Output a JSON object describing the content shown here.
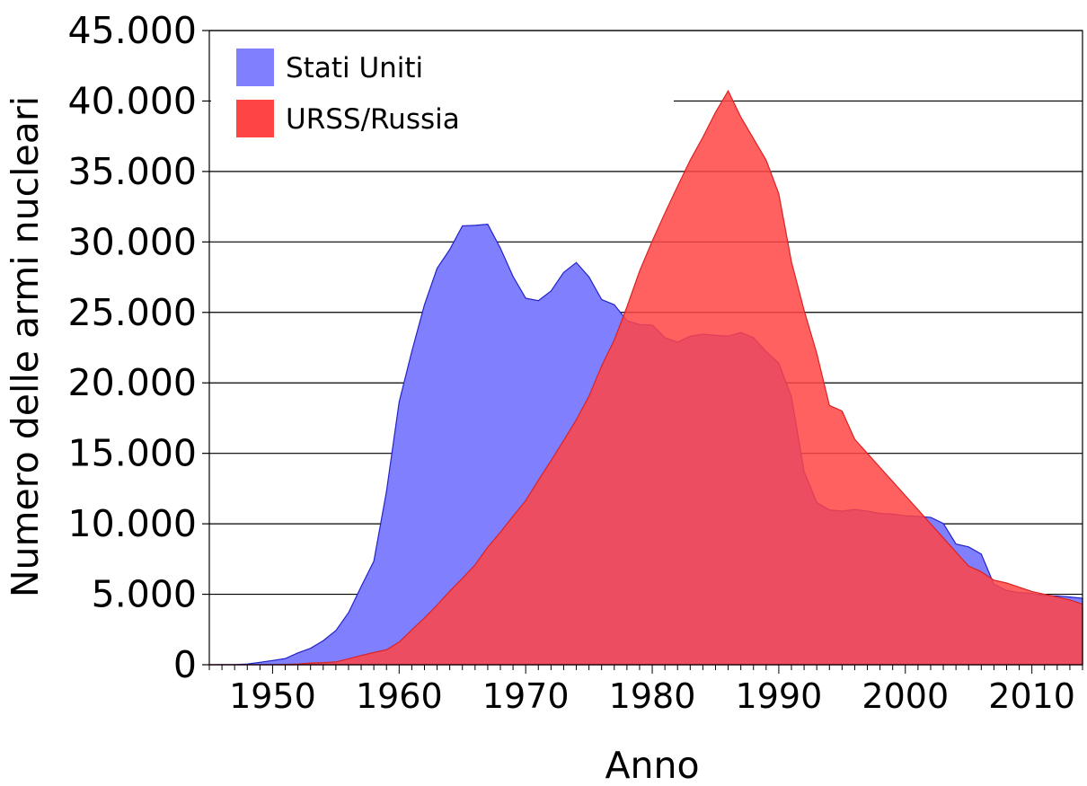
{
  "chart_data": {
    "type": "area",
    "title": "",
    "xlabel": "Anno",
    "ylabel": "Numero delle armi nucleari",
    "xlim": [
      1945,
      2014
    ],
    "ylim": [
      0,
      45000
    ],
    "grid": true,
    "legend_position": "top-left",
    "x_ticks": [
      1950,
      1960,
      1970,
      1980,
      1990,
      2000,
      2010
    ],
    "x_tick_labels": [
      "1950",
      "1960",
      "1970",
      "1980",
      "1990",
      "2000",
      "2010"
    ],
    "y_ticks": [
      0,
      5000,
      10000,
      15000,
      20000,
      25000,
      30000,
      35000,
      40000,
      45000
    ],
    "y_tick_labels": [
      "0",
      "5.000",
      "10.000",
      "15.000",
      "20.000",
      "25.000",
      "30.000",
      "35.000",
      "40.000",
      "45.000"
    ],
    "series": [
      {
        "name": "Stati Uniti",
        "fill": "#8080ff",
        "stroke": "#2222cc",
        "x": [
          1945,
          1946,
          1947,
          1948,
          1949,
          1950,
          1951,
          1952,
          1953,
          1954,
          1955,
          1956,
          1957,
          1958,
          1959,
          1960,
          1961,
          1962,
          1963,
          1964,
          1965,
          1966,
          1967,
          1968,
          1969,
          1970,
          1971,
          1972,
          1973,
          1974,
          1975,
          1976,
          1977,
          1978,
          1979,
          1980,
          1981,
          1982,
          1983,
          1984,
          1985,
          1986,
          1987,
          1988,
          1989,
          1990,
          1991,
          1992,
          1993,
          1994,
          1995,
          1996,
          1997,
          1998,
          1999,
          2000,
          2001,
          2002,
          2003,
          2004,
          2005,
          2006,
          2007,
          2008,
          2009,
          2010,
          2011,
          2012,
          2013,
          2014
        ],
        "values": [
          2,
          9,
          13,
          50,
          170,
          299,
          438,
          841,
          1169,
          1703,
          2422,
          3692,
          5543,
          7345,
          12298,
          18638,
          22229,
          25540,
          28133,
          29463,
          31139,
          31175,
          31255,
          29561,
          27552,
          26008,
          25830,
          26516,
          27835,
          28537,
          27519,
          25914,
          25542,
          24418,
          24138,
          24104,
          23208,
          22886,
          23305,
          23459,
          23368,
          23317,
          23575,
          23205,
          22217,
          21392,
          19008,
          13708,
          11511,
          10979,
          10904,
          11011,
          10903,
          10732,
          10685,
          10577,
          10526,
          10457,
          10027,
          8570,
          8360,
          7853,
          5709,
          5273,
          5113,
          5066,
          4897,
          4881,
          4804,
          4717
        ]
      },
      {
        "name": "URSS/Russia",
        "fill": "#ff4444",
        "stroke": "#dd2222",
        "x": [
          1945,
          1946,
          1947,
          1948,
          1949,
          1950,
          1951,
          1952,
          1953,
          1954,
          1955,
          1956,
          1957,
          1958,
          1959,
          1960,
          1961,
          1962,
          1963,
          1964,
          1965,
          1966,
          1967,
          1968,
          1969,
          1970,
          1971,
          1972,
          1973,
          1974,
          1975,
          1976,
          1977,
          1978,
          1979,
          1980,
          1981,
          1982,
          1983,
          1984,
          1985,
          1986,
          1987,
          1988,
          1989,
          1990,
          1991,
          1992,
          1993,
          1994,
          1995,
          1996,
          1997,
          1998,
          1999,
          2000,
          2001,
          2002,
          2003,
          2004,
          2005,
          2006,
          2007,
          2008,
          2009,
          2010,
          2011,
          2012,
          2013,
          2014
        ],
        "values": [
          0,
          0,
          0,
          0,
          1,
          5,
          25,
          50,
          120,
          150,
          200,
          426,
          660,
          869,
          1060,
          1605,
          2471,
          3322,
          4238,
          5221,
          6129,
          7089,
          8339,
          9399,
          10538,
          11643,
          13092,
          14478,
          15915,
          17385,
          19055,
          21205,
          23044,
          25393,
          27935,
          30062,
          32049,
          33952,
          35804,
          37431,
          39197,
          40723,
          38859,
          37333,
          35805,
          33417,
          28595,
          25154,
          22101,
          18399,
          18000,
          16000,
          15000,
          14000,
          13000,
          12000,
          11000,
          10000,
          9000,
          8000,
          7000,
          6600,
          6000,
          5800,
          5500,
          5200,
          5000,
          4800,
          4600,
          4300
        ]
      }
    ]
  }
}
